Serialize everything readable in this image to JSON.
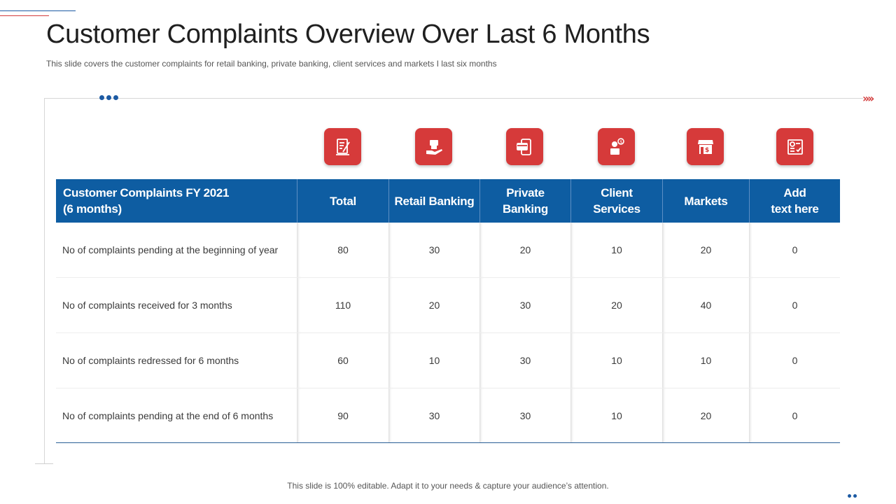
{
  "slide": {
    "title": "Customer Complaints Overview Over Last 6 Months",
    "subtitle": "This slide covers the customer complaints for retail banking, private banking, client services and markets I last six months",
    "footer": "This slide is 100% editable. Adapt it to your needs & capture your audience’s attention."
  },
  "colors": {
    "accent_blue": "#0e5da2",
    "accent_red": "#d63a3a"
  },
  "icons": [
    "document-pen-icon",
    "hand-money-icon",
    "card-phone-icon",
    "support-agent-icon",
    "store-dollar-icon",
    "report-check-icon"
  ],
  "table": {
    "headers": [
      "Customer Complaints FY 2021\n(6 months)",
      "Total",
      "Retail Banking",
      "Private\nBanking",
      "Client\nServices",
      "Markets",
      "Add\ntext here"
    ],
    "rows": [
      [
        "No of complaints  pending at the beginning of year",
        "80",
        "30",
        "20",
        "10",
        "20",
        "0"
      ],
      [
        "No of complaints  received for 3 months",
        "110",
        "20",
        "30",
        "20",
        "40",
        "0"
      ],
      [
        "No of complaints  redressed for 6 months",
        "60",
        "10",
        "30",
        "10",
        "10",
        "0"
      ],
      [
        "No of complaints  pending at the end of 6 months",
        "90",
        "30",
        "30",
        "10",
        "20",
        "0"
      ]
    ]
  }
}
